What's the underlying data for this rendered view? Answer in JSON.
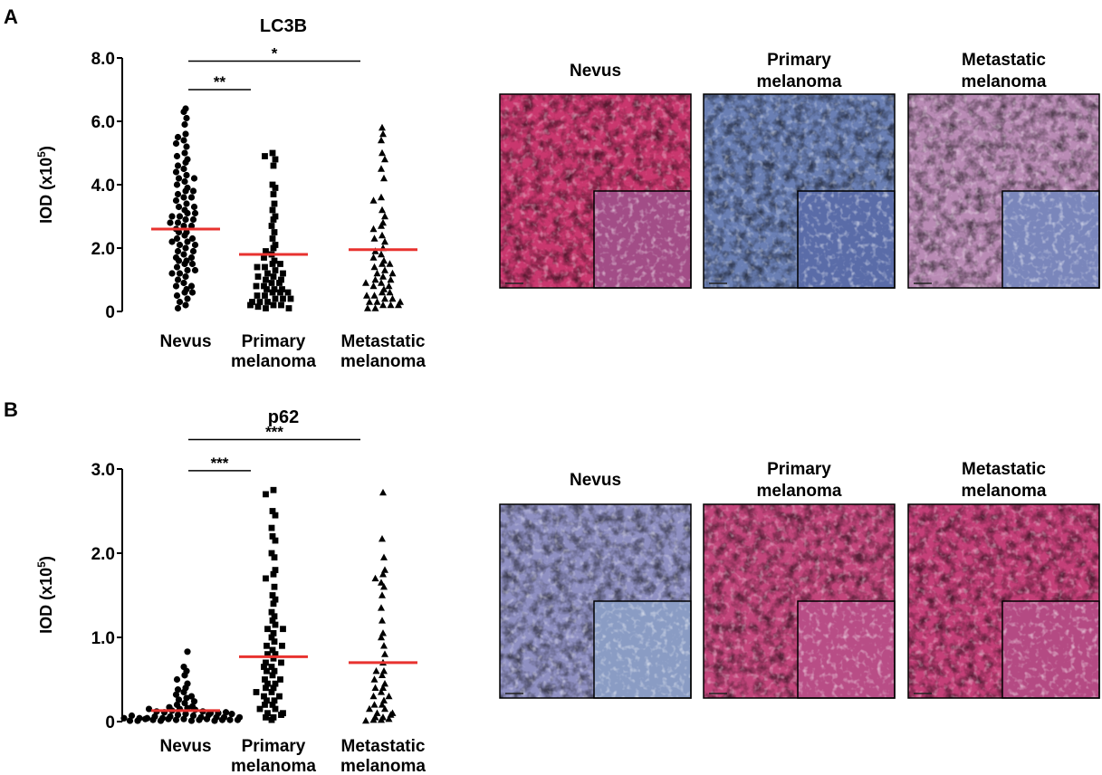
{
  "figure": {
    "panels": [
      "A",
      "B"
    ]
  },
  "chart_data": [
    {
      "panel": "A",
      "type": "scatter",
      "title": "LC3B",
      "ylabel_main": "IOD (x10",
      "ylabel_sup": "5",
      "ylabel_end": ")",
      "ylim": [
        0,
        8
      ],
      "yticks": [
        "0",
        "2.0",
        "4.0",
        "6.0",
        "8.0"
      ],
      "ytick_values": [
        0,
        2,
        4,
        6,
        8
      ],
      "categories": [
        [
          "Nevus"
        ],
        [
          "Primary",
          "melanoma"
        ],
        [
          "Metastatic",
          "melanoma"
        ]
      ],
      "significance": [
        {
          "from": 0,
          "to": 1,
          "label": "**",
          "y": 7.0
        },
        {
          "from": 0,
          "to": 2,
          "label": "*",
          "y": 7.9
        }
      ],
      "series": [
        {
          "marker": "circle",
          "mean": 2.6,
          "values": [
            6.4,
            6.3,
            6.1,
            5.9,
            5.6,
            5.5,
            5.4,
            5.3,
            5.2,
            5.0,
            4.9,
            4.8,
            4.7,
            4.6,
            4.5,
            4.4,
            4.3,
            4.2,
            4.1,
            4.0,
            3.9,
            3.8,
            3.7,
            3.6,
            3.5,
            3.4,
            3.3,
            3.2,
            3.1,
            3.0,
            2.9,
            2.8,
            2.7,
            2.6,
            2.5,
            2.4,
            2.3,
            2.2,
            2.1,
            2.0,
            1.9,
            1.8,
            1.7,
            1.6,
            1.5,
            1.4,
            1.3,
            1.2,
            1.1,
            1.0,
            0.9,
            0.8,
            0.7,
            0.6,
            0.5,
            0.4,
            0.3,
            0.2,
            0.1,
            3.8,
            3.6,
            3.3,
            3.1,
            2.9,
            2.7,
            2.5,
            2.3,
            2.1,
            1.9,
            1.7,
            1.5,
            1.3,
            4.2,
            3.0,
            2.8,
            2.2,
            1.6,
            1.2,
            0.8,
            0.6
          ]
        },
        {
          "marker": "square",
          "mean": 1.8,
          "values": [
            5.0,
            4.9,
            4.8,
            4.6,
            4.0,
            3.9,
            3.7,
            3.4,
            3.2,
            3.0,
            2.9,
            2.7,
            2.5,
            2.3,
            2.1,
            2.0,
            1.9,
            1.8,
            1.7,
            1.6,
            1.5,
            1.4,
            1.3,
            1.2,
            1.1,
            1.0,
            0.9,
            0.8,
            0.7,
            0.6,
            0.5,
            0.4,
            0.3,
            0.2,
            0.1,
            1.5,
            1.4,
            1.2,
            1.0,
            0.9,
            0.7,
            0.6,
            0.5,
            0.4,
            0.3,
            0.2,
            0.15,
            0.1,
            0.8,
            0.6,
            0.4,
            0.3,
            0.2,
            1.1,
            0.7
          ]
        },
        {
          "marker": "triangle",
          "mean": 1.95,
          "values": [
            5.8,
            5.6,
            5.4,
            5.0,
            4.8,
            4.5,
            4.2,
            3.6,
            3.5,
            3.2,
            3.0,
            2.8,
            2.7,
            2.6,
            2.4,
            2.3,
            2.2,
            2.0,
            1.9,
            1.8,
            1.7,
            1.6,
            1.5,
            1.4,
            1.3,
            1.2,
            1.1,
            1.0,
            0.9,
            0.8,
            0.7,
            0.6,
            0.5,
            0.4,
            0.3,
            0.2,
            0.1,
            1.5,
            1.2,
            1.0,
            0.8,
            0.6,
            0.4,
            0.3,
            0.2,
            0.1,
            0.9,
            0.5,
            0.3,
            0.2
          ]
        }
      ],
      "micrographs": {
        "labels": [
          [
            "Nevus"
          ],
          [
            "Primary",
            "melanoma"
          ],
          [
            "Metastatic",
            "melanoma"
          ]
        ],
        "colors": [
          "#c9376e",
          "#6a7fb4",
          "#b98bb5"
        ],
        "inset_colors": [
          "#a24d87",
          "#5a6ca8",
          "#7a86bb"
        ]
      }
    },
    {
      "panel": "B",
      "type": "scatter",
      "title": "p62",
      "ylabel_main": "IOD (x10",
      "ylabel_sup": "5",
      "ylabel_end": ")",
      "ylim": [
        0,
        3
      ],
      "yticks": [
        "0",
        "1.0",
        "2.0",
        "3.0"
      ],
      "ytick_values": [
        0,
        1,
        2,
        3
      ],
      "categories": [
        [
          "Nevus"
        ],
        [
          "Primary",
          "melanoma"
        ],
        [
          "Metastatic",
          "melanoma"
        ]
      ],
      "significance": [
        {
          "from": 0,
          "to": 1,
          "label": "***",
          "y": 2.98
        },
        {
          "from": 0,
          "to": 2,
          "label": "***",
          "y": 3.35
        }
      ],
      "series": [
        {
          "marker": "circle",
          "mean": 0.13,
          "values": [
            0.83,
            0.65,
            0.6,
            0.55,
            0.5,
            0.45,
            0.4,
            0.38,
            0.35,
            0.32,
            0.3,
            0.28,
            0.26,
            0.24,
            0.22,
            0.2,
            0.18,
            0.17,
            0.16,
            0.15,
            0.14,
            0.13,
            0.12,
            0.11,
            0.1,
            0.09,
            0.08,
            0.07,
            0.06,
            0.05,
            0.04,
            0.03,
            0.02,
            0.01,
            0.08,
            0.06,
            0.05,
            0.04,
            0.03,
            0.02,
            0.01,
            0.05,
            0.04,
            0.03,
            0.02,
            0.01,
            0.03,
            0.02,
            0.01,
            0.02,
            0.01,
            0.12,
            0.1,
            0.09,
            0.07,
            0.05,
            0.15,
            0.11,
            0.02,
            0.04
          ]
        },
        {
          "marker": "square",
          "mean": 0.77,
          "values": [
            2.75,
            2.7,
            2.5,
            2.45,
            2.3,
            2.2,
            2.15,
            2.0,
            1.95,
            1.8,
            1.75,
            1.7,
            1.6,
            1.5,
            1.45,
            1.4,
            1.3,
            1.25,
            1.2,
            1.15,
            1.1,
            1.05,
            1.0,
            0.95,
            0.9,
            0.85,
            0.8,
            0.75,
            0.7,
            0.65,
            0.6,
            0.55,
            0.5,
            0.45,
            0.4,
            0.35,
            0.3,
            0.25,
            0.2,
            0.15,
            0.1,
            0.05,
            0.02,
            0.9,
            0.8,
            0.7,
            0.6,
            0.5,
            0.4,
            0.3,
            0.2,
            0.1,
            0.05,
            1.1,
            0.65,
            0.45,
            0.35,
            0.25,
            0.15,
            0.08
          ]
        },
        {
          "marker": "triangle",
          "mean": 0.7,
          "values": [
            2.72,
            2.17,
            1.95,
            1.8,
            1.75,
            1.7,
            1.65,
            1.6,
            1.5,
            1.35,
            1.2,
            1.05,
            1.0,
            0.9,
            0.8,
            0.7,
            0.6,
            0.55,
            0.5,
            0.4,
            0.35,
            0.3,
            0.25,
            0.2,
            0.15,
            0.1,
            0.05,
            0.02,
            0.6,
            0.45,
            0.3,
            0.2,
            0.1,
            0.05,
            0.02,
            0.4,
            0.15,
            0.08,
            0.03,
            0.01
          ]
        }
      ],
      "micrographs": {
        "labels": [
          [
            "Nevus"
          ],
          [
            "Primary",
            "melanoma"
          ],
          [
            "Metastatic",
            "melanoma"
          ]
        ],
        "colors": [
          "#8f90c2",
          "#c2457b",
          "#c43f78"
        ],
        "inset_colors": [
          "#8a9cc4",
          "#b84d86",
          "#b44a83"
        ]
      }
    }
  ]
}
